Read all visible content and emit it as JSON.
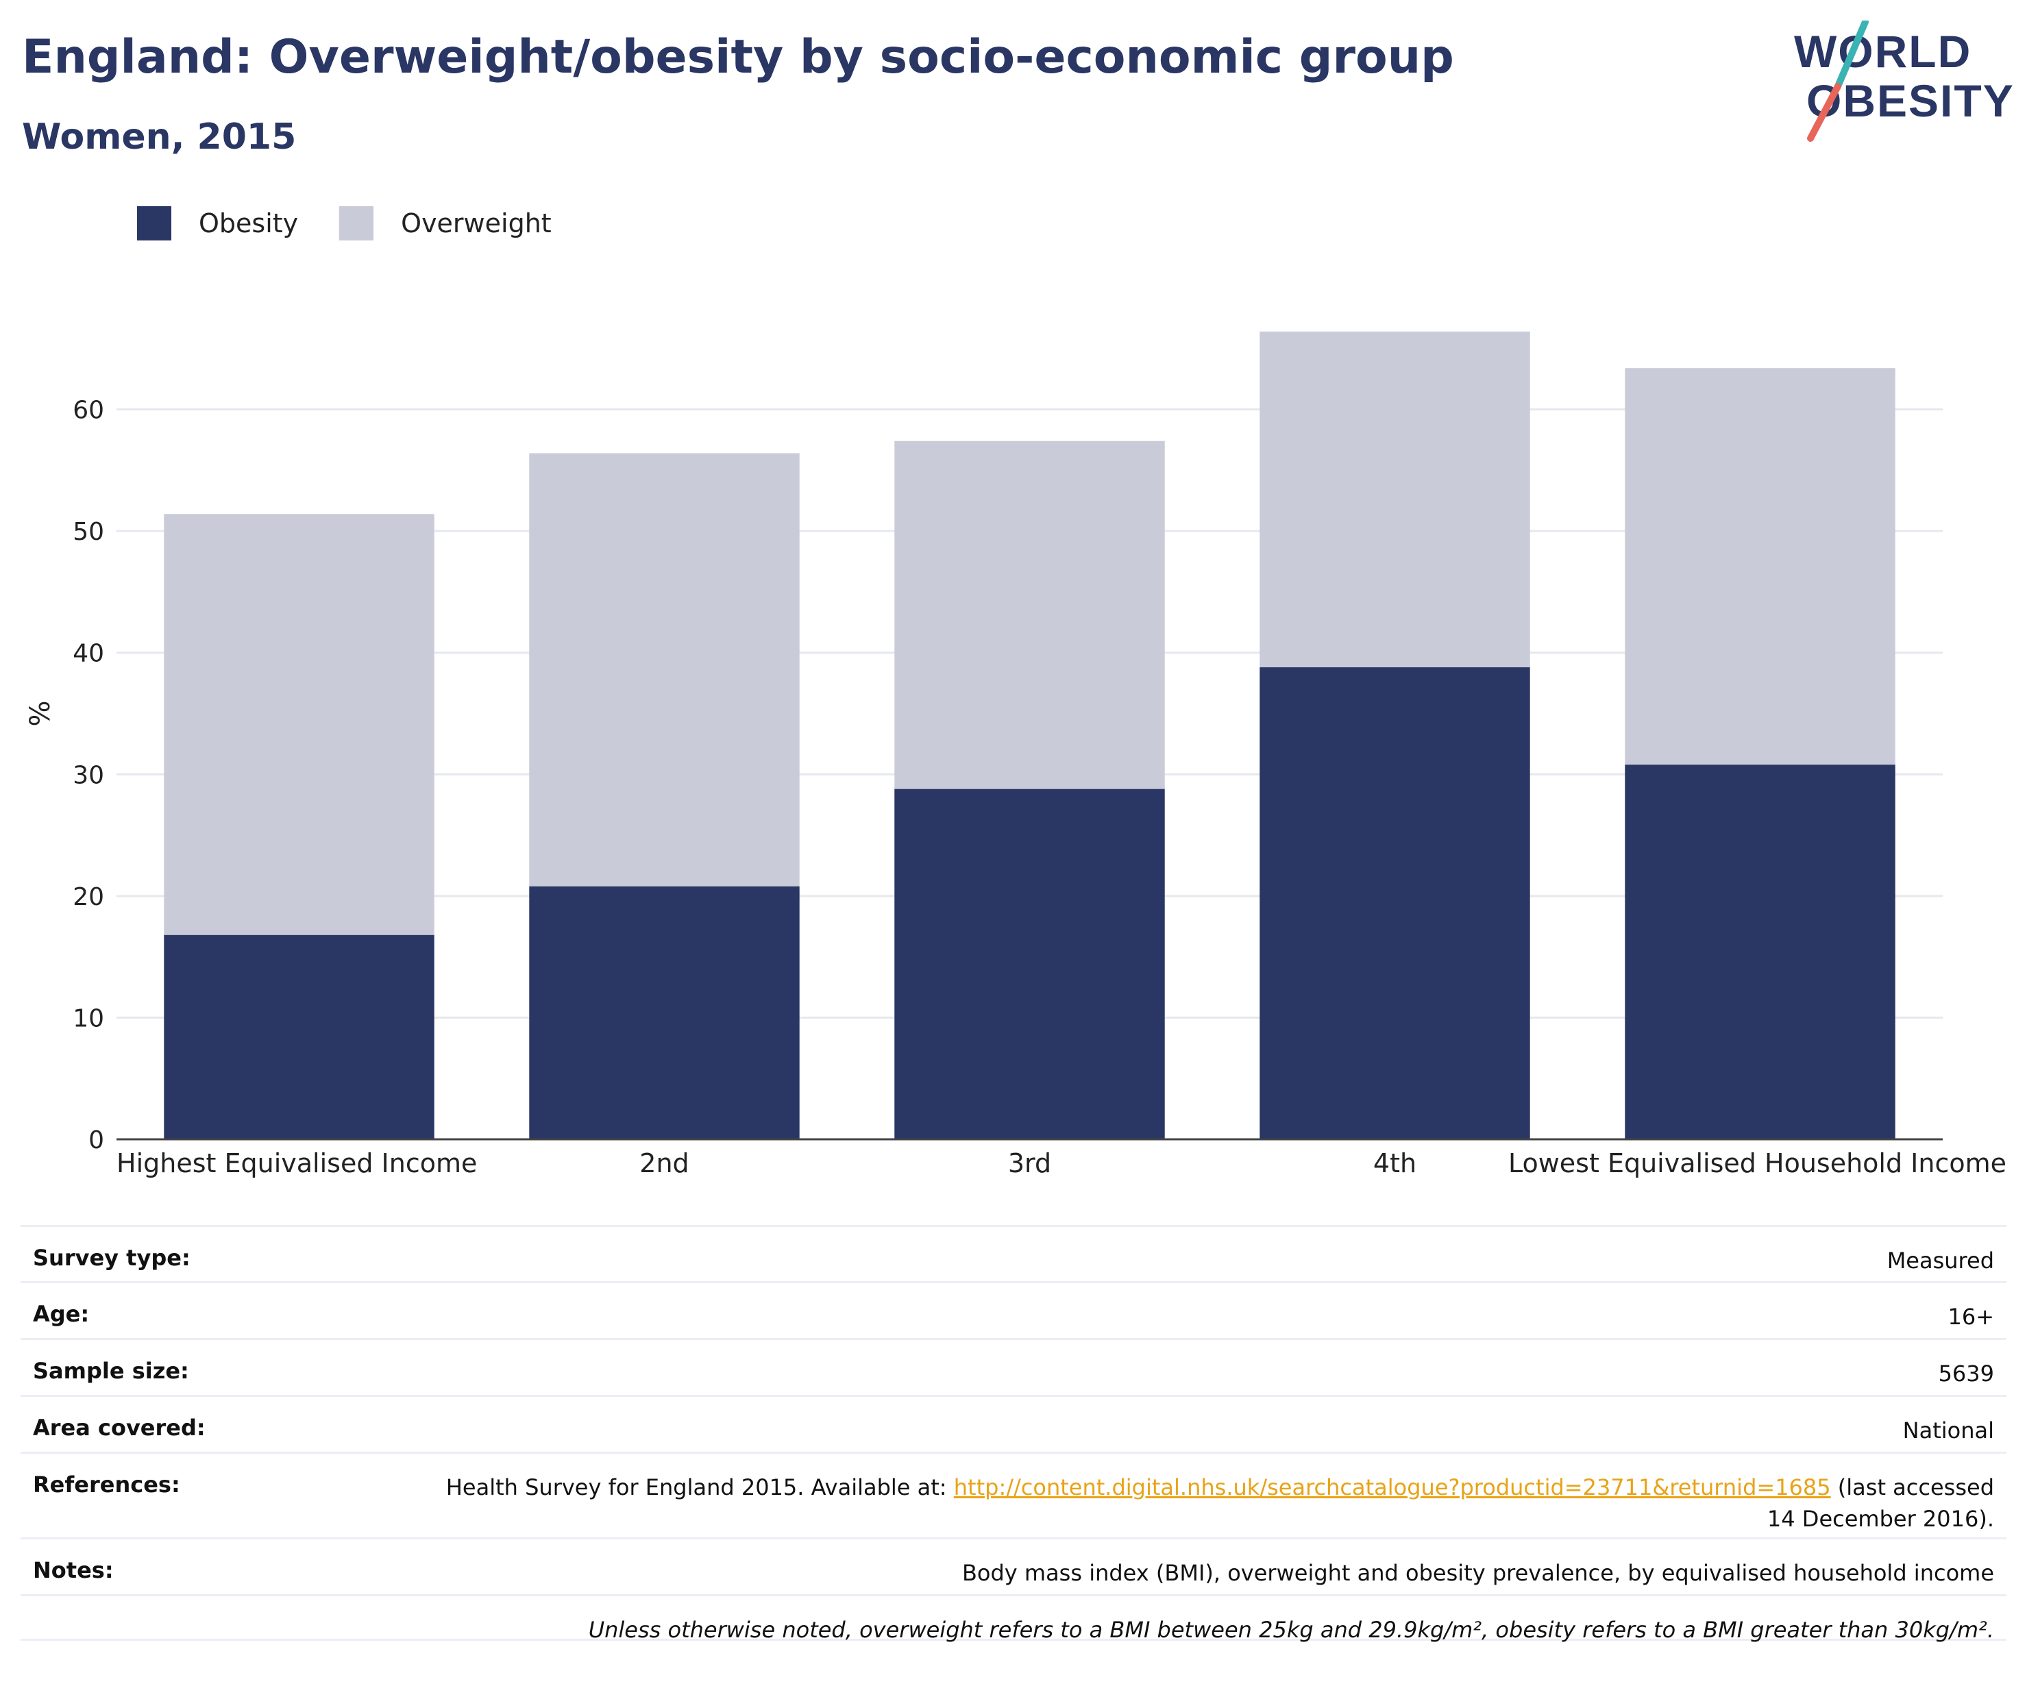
{
  "header": {
    "title": "England: Overweight/obesity by socio-economic group",
    "subtitle": "Women, 2015"
  },
  "logo": {
    "line1": "WORLD",
    "line2": "OBESITY",
    "colors": {
      "text": "#2a3663",
      "slash_teal": "#3ab3b3",
      "slash_red": "#e8655a"
    }
  },
  "legend": {
    "items": [
      {
        "label": "Obesity",
        "color": "#2a3663"
      },
      {
        "label": "Overweight",
        "color": "#c9ccd8"
      }
    ]
  },
  "chart_data": {
    "type": "bar",
    "stacked": true,
    "categories": [
      "Highest Equivalised Income",
      "2nd",
      "3rd",
      "4th",
      "Lowest Equivalised Household Income"
    ],
    "series": [
      {
        "name": "Obesity",
        "color": "#2a3663",
        "values": [
          16.8,
          20.8,
          28.8,
          38.8,
          30.8
        ]
      },
      {
        "name": "Overweight",
        "color": "#c9ccd8",
        "values": [
          34.6,
          35.6,
          28.6,
          27.6,
          32.6
        ]
      }
    ],
    "ylabel": "%",
    "ylim": [
      0,
      70
    ],
    "yticks": [
      0,
      10,
      20,
      30,
      40,
      50,
      60
    ],
    "grid": true,
    "legend_position": "top-left"
  },
  "info": {
    "rows": [
      {
        "label": "Survey type:",
        "value": "Measured"
      },
      {
        "label": "Age:",
        "value": "16+"
      },
      {
        "label": "Sample size:",
        "value": "5639"
      },
      {
        "label": "Area covered:",
        "value": "National"
      },
      {
        "label": "References:",
        "value_prefix": "Health Survey for England 2015. Available at: ",
        "link": "http://content.digital.nhs.uk/searchcatalogue?productid=23711&returnid=1685",
        "value_suffix": " (last accessed 14 December 2016)."
      },
      {
        "label": "Notes:",
        "value": "Body mass index (BMI), overweight and obesity prevalence, by equivalised household income"
      }
    ],
    "footnote": "Unless otherwise noted, overweight refers to a BMI between 25kg and 29.9kg/m², obesity refers to a BMI greater than 30kg/m²."
  }
}
